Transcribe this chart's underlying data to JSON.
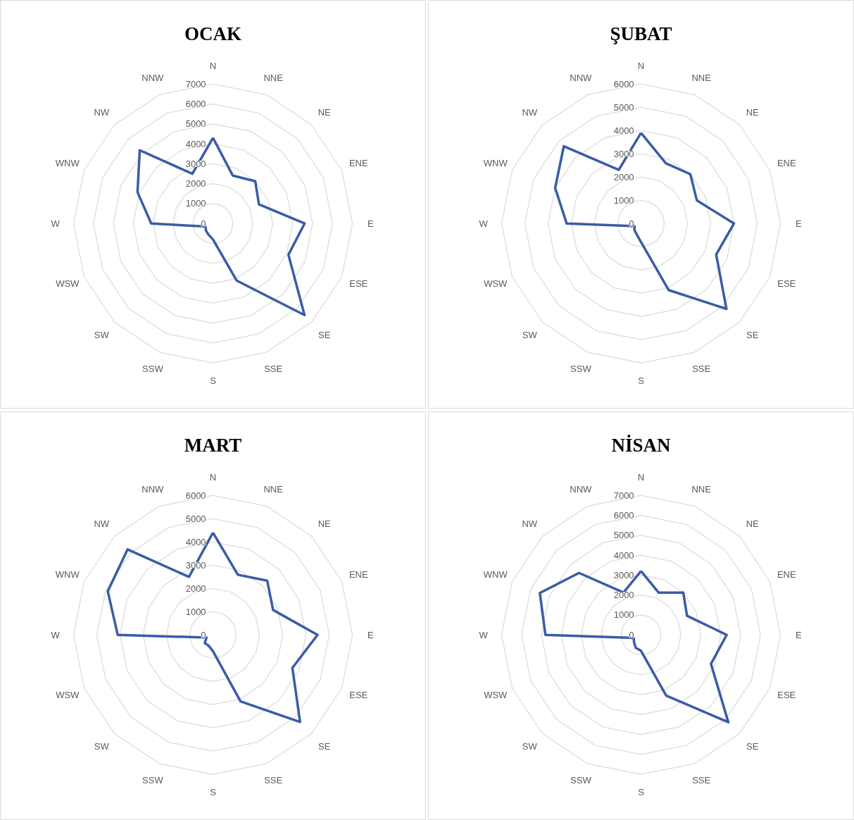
{
  "chart_data": [
    {
      "type": "radar",
      "title": "OCAK",
      "categories": [
        "N",
        "NNE",
        "NE",
        "ENE",
        "E",
        "ESE",
        "SE",
        "SSE",
        "S",
        "SSW",
        "SW",
        "WSW",
        "W",
        "WNW",
        "NW",
        "NNW"
      ],
      "series": [
        {
          "color": "#3a5ba8",
          "values": [
            4300,
            2600,
            3000,
            2500,
            4600,
            4100,
            6500,
            3100,
            800,
            600,
            500,
            400,
            3100,
            4100,
            5200,
            2700
          ]
        }
      ],
      "ylim": [
        0,
        7000
      ],
      "yticks": [
        0,
        1000,
        2000,
        3000,
        4000,
        5000,
        6000,
        7000
      ],
      "grid": true
    },
    {
      "type": "radar",
      "title": "ŞUBAT",
      "categories": [
        "N",
        "NNE",
        "NE",
        "ENE",
        "E",
        "ESE",
        "SE",
        "SSE",
        "S",
        "SSW",
        "SW",
        "WSW",
        "W",
        "WNW",
        "NW",
        "NNW"
      ],
      "series": [
        {
          "color": "#3a5ba8",
          "values": [
            3900,
            2800,
            3000,
            2600,
            4000,
            3500,
            5200,
            3100,
            800,
            500,
            400,
            300,
            3200,
            4000,
            4700,
            2500
          ]
        }
      ],
      "ylim": [
        0,
        6000
      ],
      "yticks": [
        0,
        1000,
        2000,
        3000,
        4000,
        5000,
        6000
      ],
      "grid": true
    },
    {
      "type": "radar",
      "title": "MART",
      "categories": [
        "N",
        "NNE",
        "NE",
        "ENE",
        "E",
        "ESE",
        "SE",
        "SSE",
        "S",
        "SSW",
        "SW",
        "WSW",
        "W",
        "WNW",
        "NW",
        "NNW"
      ],
      "series": [
        {
          "color": "#3a5ba8",
          "values": [
            4400,
            2800,
            3300,
            2800,
            4500,
            3700,
            5300,
            3100,
            700,
            500,
            500,
            300,
            4100,
            4900,
            5200,
            2700
          ]
        }
      ],
      "ylim": [
        0,
        6000
      ],
      "yticks": [
        0,
        1000,
        2000,
        3000,
        4000,
        5000,
        6000
      ],
      "grid": true
    },
    {
      "type": "radar",
      "title": "NİSAN",
      "categories": [
        "N",
        "NNE",
        "NE",
        "ENE",
        "E",
        "ESE",
        "SE",
        "SSE",
        "S",
        "SSW",
        "SW",
        "WSW",
        "W",
        "WNW",
        "NW",
        "NNW"
      ],
      "series": [
        {
          "color": "#3a5ba8",
          "values": [
            3200,
            2300,
            3000,
            2500,
            4300,
            3800,
            6200,
            3300,
            800,
            700,
            500,
            400,
            4800,
            5500,
            4400,
            2300
          ]
        }
      ],
      "ylim": [
        0,
        7000
      ],
      "yticks": [
        0,
        1000,
        2000,
        3000,
        4000,
        5000,
        6000,
        7000
      ],
      "grid": true
    }
  ]
}
